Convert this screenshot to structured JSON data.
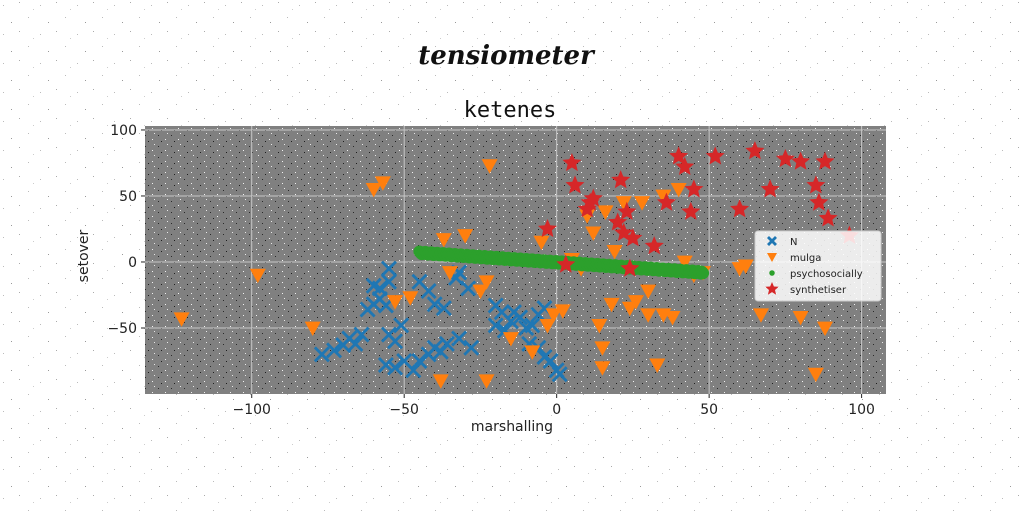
{
  "chart_data": {
    "type": "scatter",
    "suptitle": "tensiometer",
    "title": "ketenes",
    "xlabel": "marshalling",
    "ylabel": "setover",
    "xlim": [
      -135,
      108
    ],
    "ylim": [
      -100,
      103
    ],
    "xticks": [
      -100,
      -50,
      0,
      50,
      100
    ],
    "xtick_labels": [
      "−100",
      "−50",
      "0",
      "50",
      "100"
    ],
    "yticks": [
      -50,
      0,
      50,
      100
    ],
    "ytick_labels": [
      "−50",
      "0",
      "50",
      "100"
    ],
    "grid": true,
    "legend_position": "center-right",
    "background": "#808080",
    "series": [
      {
        "name": "N",
        "marker": "x",
        "color": "#1f77b4",
        "points": [
          [
            -77,
            -70
          ],
          [
            -73,
            -67
          ],
          [
            -70,
            -63
          ],
          [
            -68,
            -58
          ],
          [
            -66,
            -62
          ],
          [
            -64,
            -55
          ],
          [
            -62,
            -36
          ],
          [
            -60,
            -32
          ],
          [
            -58,
            -28
          ],
          [
            -56,
            -33
          ],
          [
            -55,
            -55
          ],
          [
            -53,
            -60
          ],
          [
            -51,
            -48
          ],
          [
            -56,
            -78
          ],
          [
            -53,
            -80
          ],
          [
            -50,
            -75
          ],
          [
            -47,
            -82
          ],
          [
            -45,
            -75
          ],
          [
            -42,
            -70
          ],
          [
            -40,
            -65
          ],
          [
            -38,
            -68
          ],
          [
            -36,
            -62
          ],
          [
            -32,
            -58
          ],
          [
            -28,
            -65
          ],
          [
            -55,
            -15
          ],
          [
            -55,
            -5
          ],
          [
            -45,
            -15
          ],
          [
            -42,
            -22
          ],
          [
            -40,
            -32
          ],
          [
            -37,
            -35
          ],
          [
            -33,
            -12
          ],
          [
            -32,
            -8
          ],
          [
            -29,
            -20
          ],
          [
            -20,
            -33
          ],
          [
            -18,
            -38
          ],
          [
            -15,
            -45
          ],
          [
            -12,
            -42
          ],
          [
            -10,
            -50
          ],
          [
            -8,
            -48
          ],
          [
            -6,
            -40
          ],
          [
            -4,
            -35
          ],
          [
            -20,
            -48
          ],
          [
            -17,
            -52
          ],
          [
            -14,
            -38
          ],
          [
            -9,
            -62
          ],
          [
            -6,
            -65
          ],
          [
            -4,
            -72
          ],
          [
            -2,
            -75
          ],
          [
            0,
            -82
          ],
          [
            1,
            -85
          ],
          [
            -60,
            -18
          ],
          [
            -58,
            -20
          ]
        ]
      },
      {
        "name": "mulga",
        "marker": "v",
        "color": "#ff7f0e",
        "points": [
          [
            -123,
            -43
          ],
          [
            -98,
            -10
          ],
          [
            -80,
            -50
          ],
          [
            -60,
            55
          ],
          [
            -57,
            60
          ],
          [
            -53,
            -30
          ],
          [
            -48,
            -27
          ],
          [
            -38,
            -90
          ],
          [
            -37,
            17
          ],
          [
            -35,
            -8
          ],
          [
            -30,
            20
          ],
          [
            -25,
            -22
          ],
          [
            -23,
            -15
          ],
          [
            -23,
            -90
          ],
          [
            -22,
            73
          ],
          [
            -15,
            -58
          ],
          [
            -8,
            -68
          ],
          [
            -5,
            15
          ],
          [
            -3,
            -48
          ],
          [
            -1,
            -40
          ],
          [
            2,
            -37
          ],
          [
            5,
            2
          ],
          [
            8,
            -5
          ],
          [
            10,
            35
          ],
          [
            12,
            22
          ],
          [
            14,
            -48
          ],
          [
            15,
            -80
          ],
          [
            15,
            -65
          ],
          [
            16,
            38
          ],
          [
            18,
            -32
          ],
          [
            19,
            8
          ],
          [
            22,
            45
          ],
          [
            24,
            -35
          ],
          [
            26,
            -30
          ],
          [
            28,
            45
          ],
          [
            30,
            -40
          ],
          [
            30,
            -22
          ],
          [
            33,
            -78
          ],
          [
            35,
            -40
          ],
          [
            35,
            50
          ],
          [
            38,
            -42
          ],
          [
            40,
            55
          ],
          [
            42,
            0
          ],
          [
            45,
            -10
          ],
          [
            48,
            -8
          ],
          [
            60,
            -5
          ],
          [
            62,
            -3
          ],
          [
            67,
            -40
          ],
          [
            80,
            -42
          ],
          [
            85,
            -85
          ],
          [
            88,
            -50
          ]
        ]
      },
      {
        "name": "psychosocially",
        "marker": "o",
        "color": "#2ca02c",
        "line_from": [
          -45,
          7
        ],
        "line_to": [
          48,
          -8
        ],
        "count": 240
      },
      {
        "name": "synthetiser",
        "marker": "*",
        "color": "#d62728",
        "points": [
          [
            -3,
            25
          ],
          [
            3,
            -2
          ],
          [
            5,
            75
          ],
          [
            6,
            58
          ],
          [
            10,
            40
          ],
          [
            11,
            45
          ],
          [
            12,
            48
          ],
          [
            20,
            30
          ],
          [
            21,
            62
          ],
          [
            22,
            22
          ],
          [
            23,
            38
          ],
          [
            24,
            -5
          ],
          [
            25,
            18
          ],
          [
            32,
            12
          ],
          [
            36,
            45
          ],
          [
            40,
            80
          ],
          [
            42,
            72
          ],
          [
            44,
            38
          ],
          [
            45,
            55
          ],
          [
            52,
            80
          ],
          [
            60,
            40
          ],
          [
            65,
            84
          ],
          [
            70,
            55
          ],
          [
            75,
            78
          ],
          [
            80,
            76
          ],
          [
            85,
            58
          ],
          [
            88,
            76
          ],
          [
            86,
            45
          ],
          [
            89,
            33
          ],
          [
            96,
            20
          ]
        ]
      }
    ]
  }
}
